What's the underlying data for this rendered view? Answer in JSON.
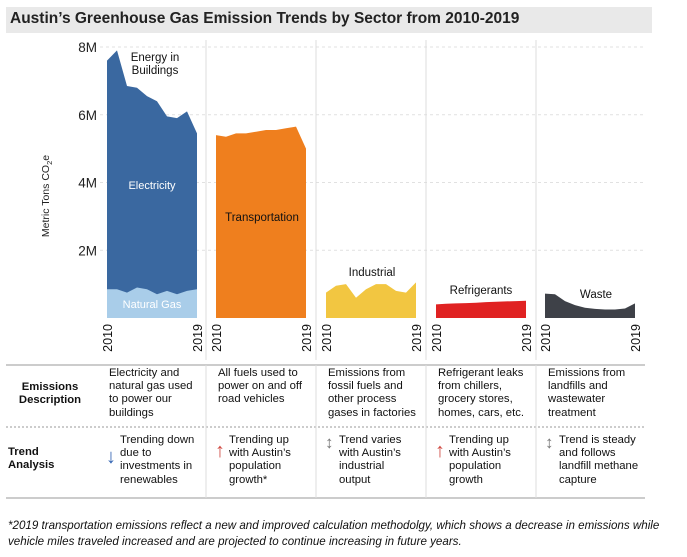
{
  "title": "Austin’s Greenhouse Gas Emission Trends by Sector from 2010-2019",
  "y_axis_title_main": "Metric Tons CO",
  "y_axis_title_sub": "2",
  "y_axis_title_end": "e",
  "row_headers": {
    "description": [
      "Emissions",
      "Description"
    ],
    "trend": [
      "Trend",
      "Analysis"
    ]
  },
  "chart_data": {
    "type": "area",
    "title": "Austin’s Greenhouse Gas Emission Trends by Sector from 2010-2019",
    "ylabel": "Metric Tons CO2e",
    "ylim": [
      0,
      8000000
    ],
    "yticks": [
      {
        "value": 2000000,
        "label": "2M"
      },
      {
        "value": 4000000,
        "label": "4M"
      },
      {
        "value": 6000000,
        "label": "6M"
      },
      {
        "value": 8000000,
        "label": "8M"
      }
    ],
    "x_start_label": "2010",
    "x_end_label": "2019",
    "years": [
      2010,
      2011,
      2012,
      2013,
      2014,
      2015,
      2016,
      2017,
      2018,
      2019
    ],
    "panels": [
      {
        "sector": "Energy in Buildings",
        "label_lines": [
          "Energy in",
          "Buildings"
        ],
        "series": [
          {
            "name": "Electricity",
            "color": "#3a68a0",
            "values": [
              7600000,
              7900000,
              6850000,
              6800000,
              6550000,
              6400000,
              5950000,
              5900000,
              6100000,
              5450000
            ]
          },
          {
            "name": "Natural Gas",
            "color": "#a9cde9",
            "values": [
              850000,
              850000,
              750000,
              900000,
              850000,
              700000,
              800000,
              700000,
              800000,
              850000
            ]
          }
        ],
        "description": [
          "Electricity and",
          "natural gas used",
          "to power our",
          "buildings"
        ],
        "trend": {
          "direction": "down",
          "symbol": "↓",
          "color": "#3465b3",
          "lines": [
            "Trending down",
            "due to",
            "investments in",
            "renewables"
          ]
        }
      },
      {
        "sector": "Transportation",
        "label_lines": [
          "Transportation"
        ],
        "series": [
          {
            "name": "Transportation",
            "color": "#ef7f1e",
            "values": [
              5400000,
              5350000,
              5450000,
              5450000,
              5500000,
              5550000,
              5550000,
              5600000,
              5650000,
              5000000
            ]
          }
        ],
        "description": [
          "All fuels used to",
          "power on and off",
          "road vehicles"
        ],
        "trend": {
          "direction": "up",
          "symbol": "↑",
          "color": "#d04a42",
          "lines": [
            "Trending up",
            "with Austin’s",
            "population",
            "growth*"
          ]
        }
      },
      {
        "sector": "Industrial",
        "label_lines": [
          "Industrial"
        ],
        "series": [
          {
            "name": "Industrial",
            "color": "#f2c641",
            "values": [
              750000,
              950000,
              1000000,
              600000,
              850000,
              1000000,
              1000000,
              800000,
              750000,
              1050000
            ]
          }
        ],
        "description": [
          "Emissions from",
          "fossil fuels and",
          "other process",
          "gases in factories"
        ],
        "trend": {
          "direction": "varies",
          "symbol": "↕",
          "color": "#777777",
          "lines": [
            "Trend varies",
            "with Austin’s",
            "industrial",
            "output"
          ]
        }
      },
      {
        "sector": "Refrigerants",
        "label_lines": [
          "Refrigerants"
        ],
        "series": [
          {
            "name": "Refrigerants",
            "color": "#e02222",
            "values": [
              400000,
              420000,
              430000,
              440000,
              450000,
              470000,
              480000,
              490000,
              500000,
              510000
            ]
          }
        ],
        "description": [
          "Refrigerant leaks",
          "from chillers,",
          "grocery stores,",
          "homes, cars, etc."
        ],
        "trend": {
          "direction": "up",
          "symbol": "↑",
          "color": "#d04a42",
          "lines": [
            "Trending up",
            "with Austin’s",
            "population",
            "growth"
          ]
        }
      },
      {
        "sector": "Waste",
        "label_lines": [
          "Waste"
        ],
        "series": [
          {
            "name": "Waste",
            "color": "#3e4148",
            "values": [
              720000,
              700000,
              500000,
              380000,
              300000,
              270000,
              250000,
              250000,
              280000,
              430000
            ]
          }
        ],
        "description": [
          "Emissions from",
          "landfills and",
          "wastewater",
          "treatment"
        ],
        "trend": {
          "direction": "steady",
          "symbol": "↕",
          "color": "#777777",
          "lines": [
            "Trend is steady",
            "and follows",
            "landfill methane",
            "capture"
          ]
        }
      }
    ]
  },
  "footnote": "*2019 transportation emissions reflect a new and improved calculation methodolgy, which shows a decrease in emissions while vehicle miles traveled increased and are projected to continue increasing in future years."
}
